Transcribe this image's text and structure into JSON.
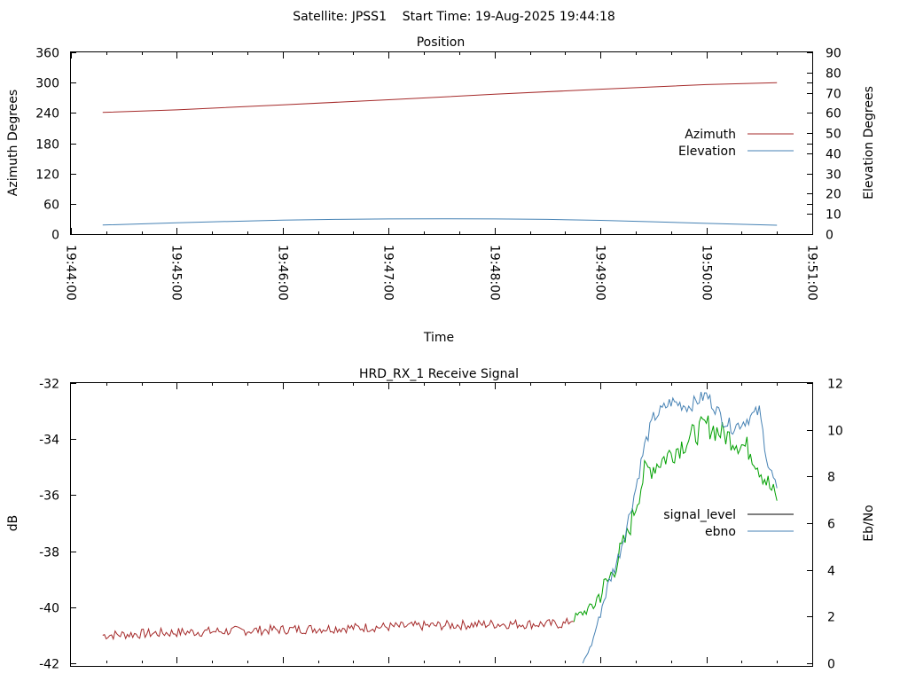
{
  "header": {
    "title": "Satellite: JPSS1    Start Time: 19-Aug-2025 19:44:18"
  },
  "colors": {
    "azimuth": "#a52a2a",
    "elevation": "#4682b4",
    "signal_level": "#000000",
    "signal_low": "#a52a2a",
    "signal_high": "#00a000",
    "ebno": "#4682b4"
  },
  "chart_data": [
    {
      "type": "line",
      "title": "Position",
      "xlabel": "Time",
      "ylabel": "Azimuth Degrees",
      "y2label": "Elevation Degrees",
      "xlim": [
        "19:44:00",
        "19:51:00"
      ],
      "ylim": [
        0,
        360
      ],
      "y2lim": [
        0,
        90
      ],
      "xticks": [
        "19:44:00",
        "19:45:00",
        "19:46:00",
        "19:47:00",
        "19:48:00",
        "19:49:00",
        "19:50:00",
        "19:51:00"
      ],
      "yticks": [
        "0",
        "60",
        "120",
        "180",
        "240",
        "300",
        "360"
      ],
      "y2ticks": [
        "0",
        "10",
        "20",
        "30",
        "40",
        "50",
        "60",
        "70",
        "80",
        "90"
      ],
      "legend": "right",
      "grid": false,
      "series": [
        {
          "name": "Azimuth",
          "axis": "left",
          "x": [
            "19:44:18",
            "19:45:00",
            "19:46:00",
            "19:47:00",
            "19:48:00",
            "19:49:00",
            "19:50:00",
            "19:50:40"
          ],
          "values": [
            241,
            246,
            256,
            266,
            277,
            287,
            296,
            300
          ]
        },
        {
          "name": "Elevation",
          "axis": "right",
          "x": [
            "19:44:18",
            "19:45:00",
            "19:45:30",
            "19:46:00",
            "19:46:30",
            "19:47:00",
            "19:47:30",
            "19:48:00",
            "19:48:30",
            "19:49:00",
            "19:49:30",
            "19:50:00",
            "19:50:40"
          ],
          "values": [
            4.5,
            5.6,
            6.3,
            6.9,
            7.3,
            7.5,
            7.6,
            7.5,
            7.3,
            6.8,
            6.1,
            5.3,
            4.4
          ]
        }
      ]
    },
    {
      "type": "line",
      "title": "HRD_RX_1 Receive Signal",
      "xlabel": "",
      "ylabel": "dB",
      "y2label": "Eb/No",
      "xlim": [
        "19:44:00",
        "19:51:00"
      ],
      "ylim": [
        -42,
        -32
      ],
      "y2lim": [
        0,
        12
      ],
      "yticks": [
        "-42",
        "-40",
        "-38",
        "-36",
        "-34",
        "-32"
      ],
      "y2ticks": [
        "0",
        "2",
        "4",
        "6",
        "8",
        "10",
        "12"
      ],
      "legend": "right",
      "grid": false,
      "series": [
        {
          "name": "signal_level",
          "axis": "left",
          "x": [
            "19:44:18",
            "19:45:00",
            "19:46:00",
            "19:47:00",
            "19:48:00",
            "19:48:40",
            "19:48:55",
            "19:49:05",
            "19:49:15",
            "19:49:25",
            "19:49:40",
            "19:50:00",
            "19:50:15",
            "19:50:25",
            "19:50:35",
            "19:50:40"
          ],
          "values": [
            -41.0,
            -40.9,
            -40.8,
            -40.7,
            -40.6,
            -40.6,
            -40.0,
            -39.0,
            -37.5,
            -35.2,
            -34.5,
            -33.5,
            -34.0,
            -34.4,
            -35.6,
            -36.2
          ]
        },
        {
          "name": "ebno",
          "axis": "right",
          "x": [
            "19:48:50",
            "19:48:55",
            "19:49:00",
            "19:49:05",
            "19:49:10",
            "19:49:15",
            "19:49:20",
            "19:49:25",
            "19:49:30",
            "19:49:40",
            "19:49:50",
            "19:50:00",
            "19:50:10",
            "19:50:15",
            "19:50:20",
            "19:50:30",
            "19:50:35",
            "19:50:40"
          ],
          "values": [
            0.0,
            0.8,
            2.2,
            3.5,
            4.5,
            5.9,
            7.5,
            9.3,
            10.5,
            11.2,
            11.0,
            11.5,
            10.4,
            10.1,
            10.3,
            10.8,
            8.5,
            7.5
          ]
        }
      ]
    }
  ]
}
